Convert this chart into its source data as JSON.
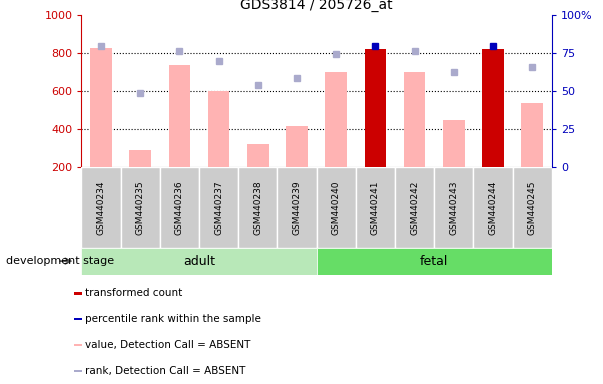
{
  "title": "GDS3814 / 205726_at",
  "samples": [
    "GSM440234",
    "GSM440235",
    "GSM440236",
    "GSM440237",
    "GSM440238",
    "GSM440239",
    "GSM440240",
    "GSM440241",
    "GSM440242",
    "GSM440243",
    "GSM440244",
    "GSM440245"
  ],
  "values": [
    830,
    290,
    740,
    600,
    320,
    415,
    700,
    820,
    700,
    450,
    825,
    540
  ],
  "ranks": [
    840,
    590,
    810,
    760,
    635,
    670,
    795,
    838,
    810,
    700,
    840,
    730
  ],
  "is_present": [
    false,
    false,
    false,
    false,
    false,
    false,
    false,
    true,
    false,
    false,
    true,
    false
  ],
  "adult_count": 6,
  "fetal_count": 6,
  "ylim_left": [
    200,
    1000
  ],
  "ylim_right": [
    0,
    100
  ],
  "yticks_left": [
    200,
    400,
    600,
    800,
    1000
  ],
  "yticks_right": [
    0,
    25,
    50,
    75,
    100
  ],
  "right_tick_labels": [
    "0",
    "25",
    "50",
    "75",
    "100%"
  ],
  "color_bar_absent": "#ffb3b3",
  "color_bar_present": "#cc0000",
  "color_rank_absent": "#aaaacc",
  "color_rank_present": "#0000bb",
  "color_adult_bg": "#b8e8b8",
  "color_fetal_bg": "#66dd66",
  "color_sample_bg": "#cccccc",
  "left_axis_color": "#cc0000",
  "right_axis_color": "#0000bb",
  "stage_label": "development stage",
  "legend_items": [
    {
      "label": "transformed count",
      "color": "#cc0000"
    },
    {
      "label": "percentile rank within the sample",
      "color": "#0000bb"
    },
    {
      "label": "value, Detection Call = ABSENT",
      "color": "#ffb3b3"
    },
    {
      "label": "rank, Detection Call = ABSENT",
      "color": "#aaaacc"
    }
  ],
  "fig_width": 6.03,
  "fig_height": 3.84,
  "dpi": 100
}
